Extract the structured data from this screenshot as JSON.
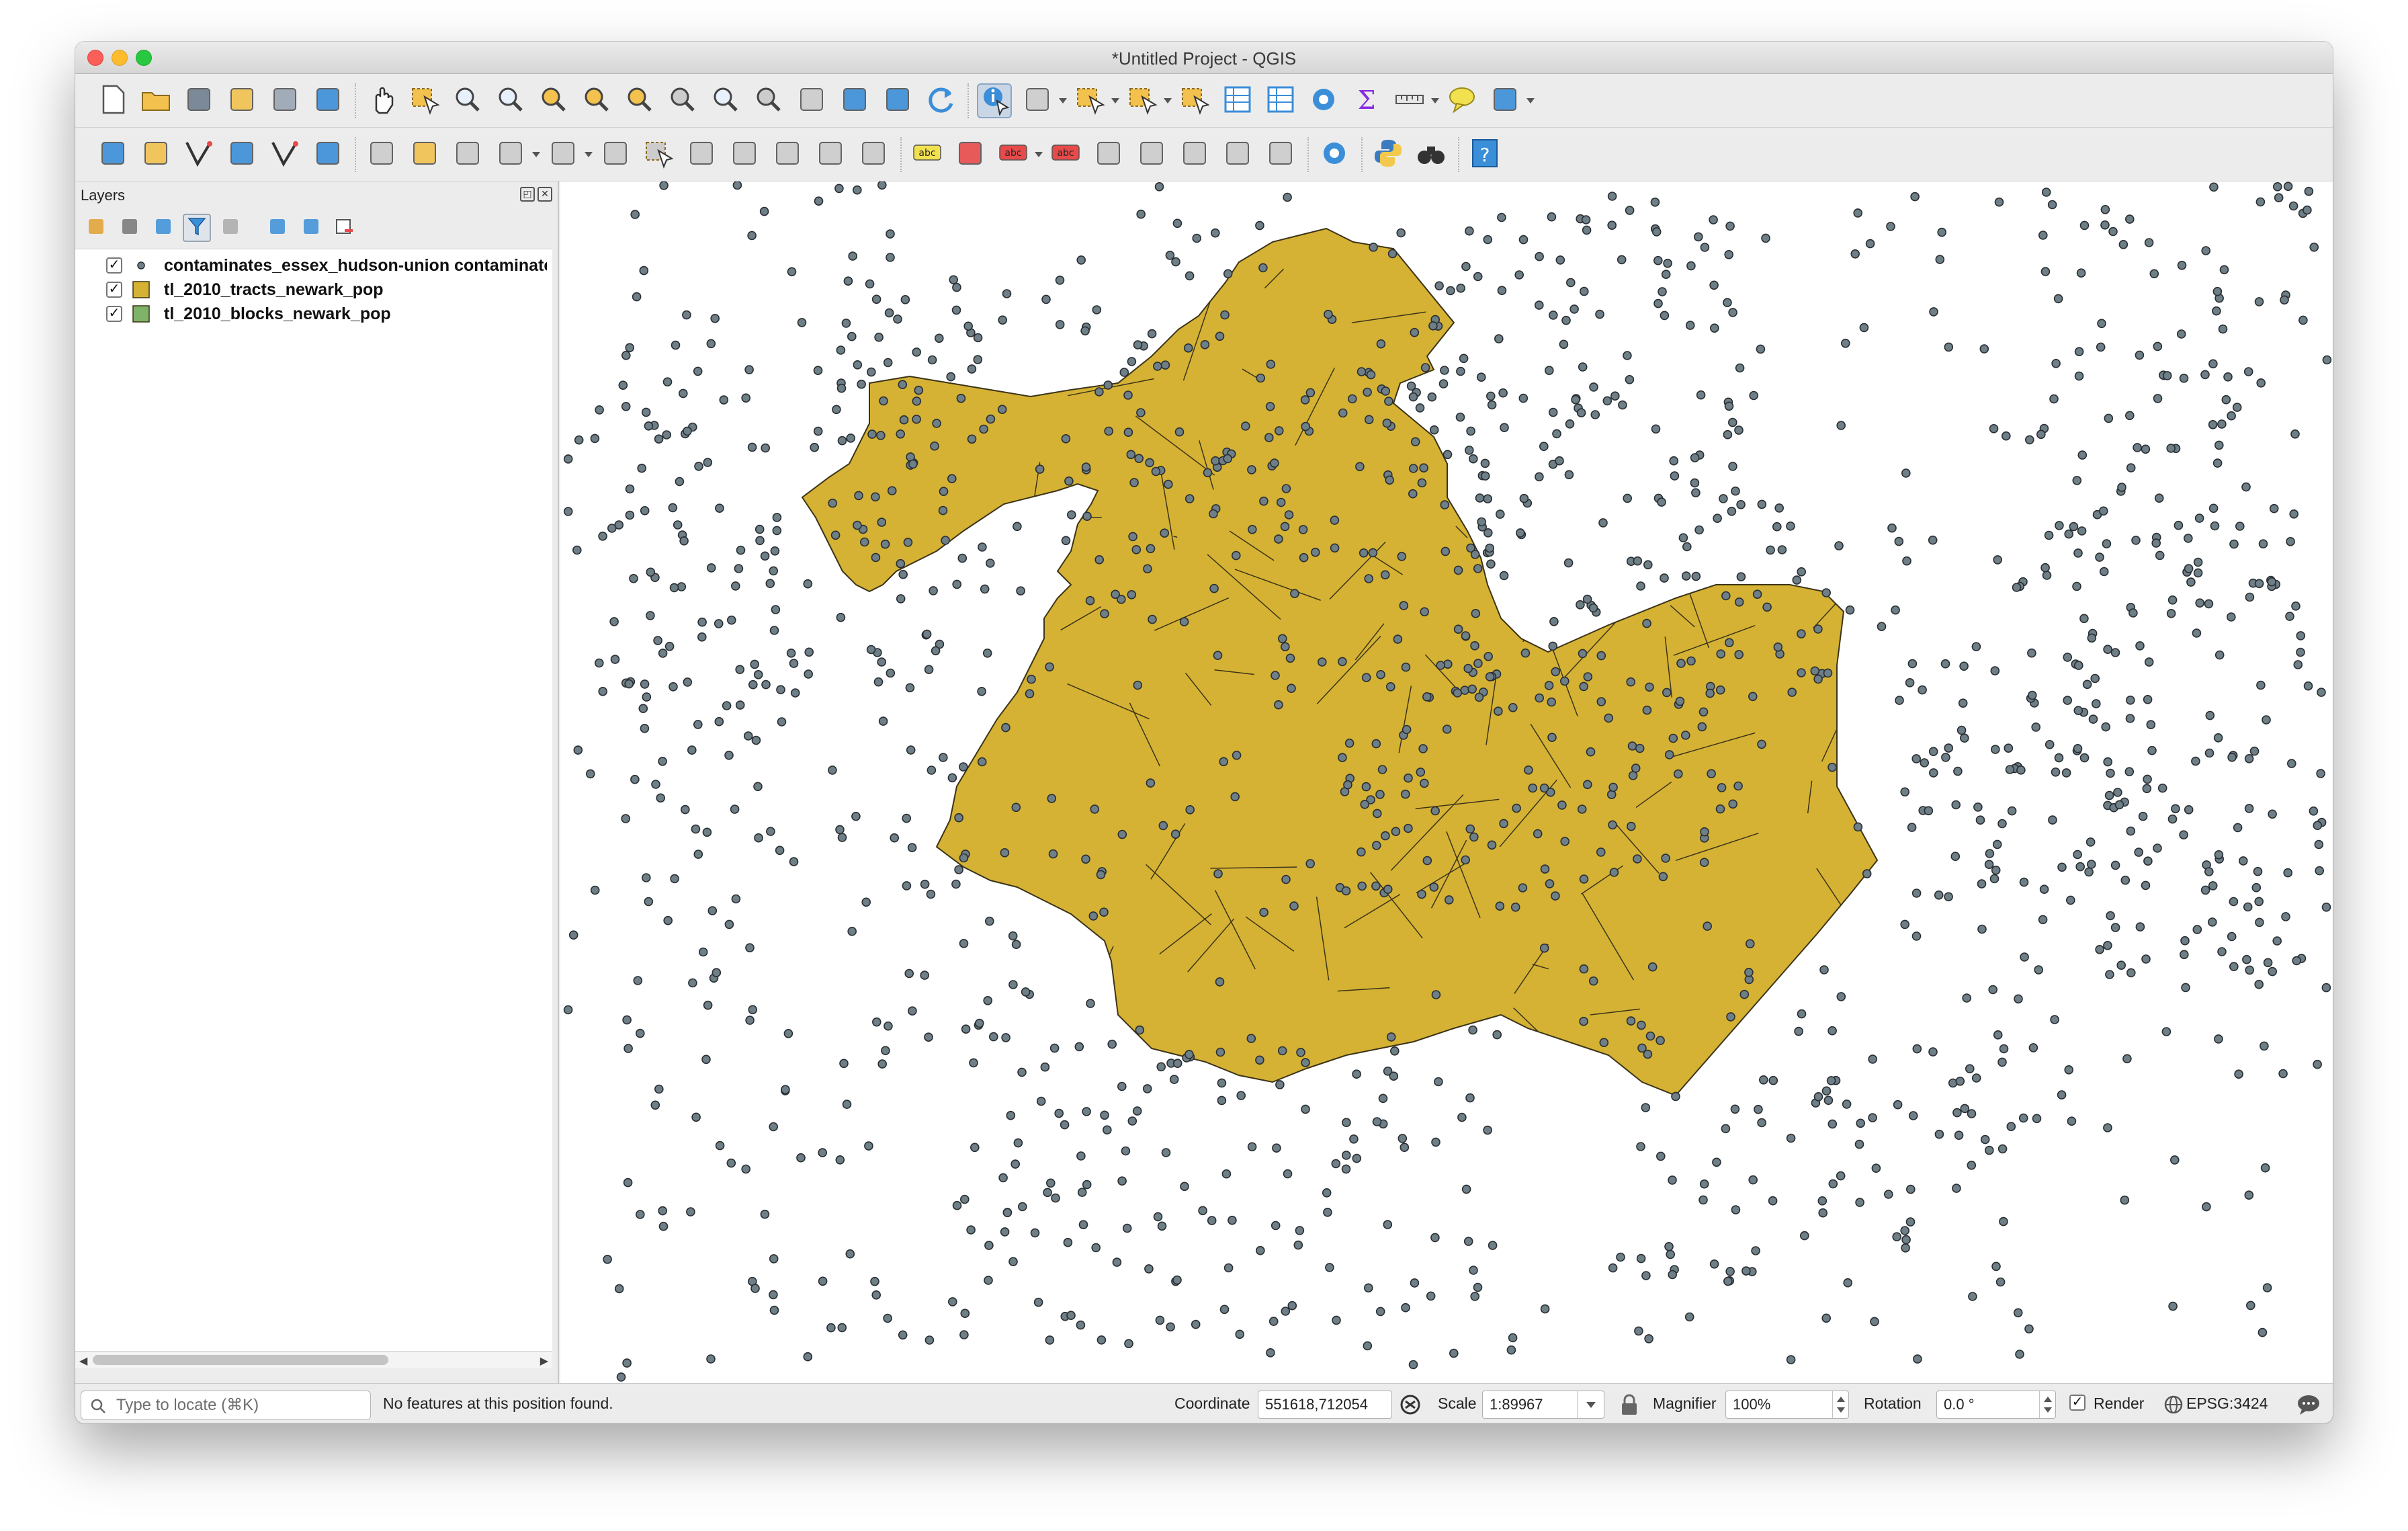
{
  "window": {
    "title": "*Untitled Project - QGIS"
  },
  "toolbar_row1": [
    {
      "icon": "new-project-icon",
      "color": "#ffffff"
    },
    {
      "icon": "open-project-icon",
      "color": "#f2c14e"
    },
    {
      "icon": "save-project-icon",
      "color": "#6f7f91"
    },
    {
      "icon": "save-as-icon",
      "color": "#f2c14e"
    },
    {
      "icon": "print-layout-icon",
      "color": "#9aa6b3"
    },
    {
      "icon": "style-manager-icon",
      "color": "#3b8ed8"
    },
    {
      "icon": "pan-map-icon",
      "color": "#ffffff"
    },
    {
      "icon": "pan-to-selection-icon",
      "color": "#f2c14e"
    },
    {
      "icon": "zoom-in-icon",
      "color": "#e8f0fb"
    },
    {
      "icon": "zoom-out-icon",
      "color": "#e8f0fb"
    },
    {
      "icon": "zoom-full-icon",
      "color": "#f2c14e"
    },
    {
      "icon": "zoom-to-selection-icon",
      "color": "#f2c14e"
    },
    {
      "icon": "zoom-to-layer-icon",
      "color": "#f2c14e"
    },
    {
      "icon": "zoom-native-icon",
      "color": "#cccccc"
    },
    {
      "icon": "zoom-last-icon",
      "color": "#e8f0fb"
    },
    {
      "icon": "zoom-next-icon",
      "color": "#cccccc"
    },
    {
      "icon": "new-map-view-icon",
      "color": "#cccccc"
    },
    {
      "icon": "new-bookmark-icon",
      "color": "#3b8ed8"
    },
    {
      "icon": "show-bookmarks-icon",
      "color": "#3b8ed8"
    },
    {
      "icon": "refresh-icon",
      "color": "#3b8ed8"
    },
    {
      "icon": "identify-features-icon",
      "color": "#3b8ed8"
    },
    {
      "icon": "run-action-icon",
      "color": "#cccccc"
    },
    {
      "icon": "select-features-icon",
      "color": "#f2c14e"
    },
    {
      "icon": "select-by-value-icon",
      "color": "#f2c14e"
    },
    {
      "icon": "deselect-all-icon",
      "color": "#f2c14e"
    },
    {
      "icon": "attribute-table-icon",
      "color": "#3b8ed8"
    },
    {
      "icon": "statistics-icon",
      "color": "#3b8ed8"
    },
    {
      "icon": "toolbox-icon",
      "color": "#3b8ed8"
    },
    {
      "icon": "field-calculator-icon",
      "color": "#8a2be2"
    },
    {
      "icon": "measure-line-icon",
      "color": "#555555"
    },
    {
      "icon": "map-tips-icon",
      "color": "#f2e14e"
    },
    {
      "icon": "text-annotation-icon",
      "color": "#3b8ed8"
    }
  ],
  "toolbar_row2": [
    {
      "icon": "data-source-manager-icon",
      "color": "#3b8ed8"
    },
    {
      "icon": "new-geopackage-layer-icon",
      "color": "#f2c14e"
    },
    {
      "icon": "digitize-vertex-icon",
      "color": "#333333"
    },
    {
      "icon": "new-spatialite-layer-icon",
      "color": "#3b8ed8"
    },
    {
      "icon": "new-virtual-layer-icon",
      "color": "#333333"
    },
    {
      "icon": "new-temporary-layer-icon",
      "color": "#3b8ed8"
    },
    {
      "icon": "current-edits-icon",
      "color": "#cccccc"
    },
    {
      "icon": "toggle-editing-icon",
      "color": "#f2c14e"
    },
    {
      "icon": "save-edits-icon",
      "color": "#cccccc"
    },
    {
      "icon": "add-feature-icon",
      "color": "#cccccc"
    },
    {
      "icon": "vertex-tool-icon",
      "color": "#cccccc"
    },
    {
      "icon": "modify-attributes-icon",
      "color": "#cccccc"
    },
    {
      "icon": "delete-selected-icon",
      "color": "#cccccc"
    },
    {
      "icon": "cut-features-icon",
      "color": "#cccccc"
    },
    {
      "icon": "copy-features-icon",
      "color": "#cccccc"
    },
    {
      "icon": "paste-features-icon",
      "color": "#cccccc"
    },
    {
      "icon": "undo-icon",
      "color": "#cccccc"
    },
    {
      "icon": "redo-icon",
      "color": "#cccccc"
    },
    {
      "icon": "label-tool-icon",
      "color": "#f2e14e"
    },
    {
      "icon": "layer-diagram-icon",
      "color": "#e84a4a"
    },
    {
      "icon": "highlight-pinned-labels-icon",
      "color": "#e84a4a"
    },
    {
      "icon": "pin-labels-icon",
      "color": "#e84a4a"
    },
    {
      "icon": "show-hide-labels-icon",
      "color": "#cccccc"
    },
    {
      "icon": "move-label-icon",
      "color": "#cccccc"
    },
    {
      "icon": "rotate-label-icon",
      "color": "#cccccc"
    },
    {
      "icon": "change-label-icon",
      "color": "#cccccc"
    },
    {
      "icon": "label-properties-icon",
      "color": "#cccccc"
    },
    {
      "icon": "plugin-globe-icon",
      "color": "#3b8ed8"
    },
    {
      "icon": "python-console-icon",
      "color": "#3b8ed8"
    },
    {
      "icon": "plugin-binoculars-icon",
      "color": "#333333"
    },
    {
      "icon": "help-icon",
      "color": "#3b8ed8"
    }
  ],
  "layers_panel": {
    "title": "Layers",
    "toolbar_icons": [
      "style-panel-icon",
      "add-group-icon",
      "manage-visibility-icon",
      "filter-legend-icon",
      "filter-expression-icon",
      "expand-all-icon",
      "collapse-all-icon",
      "remove-layer-icon"
    ],
    "layers": [
      {
        "name": "contaminates_essex_hudson-union contaminates_essex_hudson-union",
        "checked": "✓",
        "symbol": "point",
        "color": "#6e7f87"
      },
      {
        "name": "tl_2010_tracts_newark_pop",
        "checked": "✓",
        "symbol": "polygon",
        "color": "#d5b234"
      },
      {
        "name": "tl_2010_blocks_newark_pop",
        "checked": "✓",
        "symbol": "polygon",
        "color": "#7fb36a"
      }
    ]
  },
  "map": {
    "tract_fill": "#d5b234",
    "tract_stroke": "#3c3418",
    "block_fill": "#7fb36a",
    "point_fill": "#6e7f87",
    "point_stroke": "#2a2f33",
    "background": "#ffffff"
  },
  "statusbar": {
    "locate_placeholder": "Type to locate (⌘K)",
    "message": "No features at this position found.",
    "coordinate_label": "Coordinate",
    "coordinate_value": "551618,712054",
    "scale_label": "Scale",
    "scale_value": "1:89967",
    "magnifier_label": "Magnifier",
    "magnifier_value": "100%",
    "rotation_label": "Rotation",
    "rotation_value": "0.0 °",
    "render_label": "Render",
    "render_checked": "✓",
    "crs_label": "EPSG:3424"
  }
}
